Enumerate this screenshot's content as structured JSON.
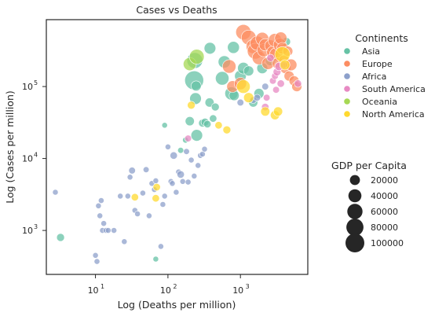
{
  "chart_data": {
    "type": "scatter",
    "title": "Cases vs Deaths",
    "xlabel": "Log (Deaths per million)",
    "ylabel": "Log (Cases per million)",
    "xscale": "log",
    "yscale": "log",
    "xlim": [
      2.1,
      8500
    ],
    "ylim": [
      245,
      850000
    ],
    "xticks": [
      {
        "value": 10,
        "base": "10",
        "exp": "1"
      },
      {
        "value": 100,
        "base": "10",
        "exp": "2"
      },
      {
        "value": 1000,
        "base": "10",
        "exp": "3"
      }
    ],
    "yticks": [
      {
        "value": 1000,
        "base": "10",
        "exp": "3"
      },
      {
        "value": 10000,
        "base": "10",
        "exp": "4"
      },
      {
        "value": 100000,
        "base": "10",
        "exp": "5"
      }
    ],
    "grid": false,
    "hue_legend": {
      "title": "Continents",
      "entries": [
        {
          "name": "Asia",
          "color": "#66c2a5"
        },
        {
          "name": "Europe",
          "color": "#fc8d62"
        },
        {
          "name": "Africa",
          "color": "#8da0cb"
        },
        {
          "name": "South America",
          "color": "#e78ac3"
        },
        {
          "name": "Oceania",
          "color": "#a6d854"
        },
        {
          "name": "North America",
          "color": "#ffd92f"
        }
      ]
    },
    "size_legend": {
      "title": "GDP per Capita",
      "entries": [
        {
          "label": "20000",
          "value": 20000
        },
        {
          "label": "40000",
          "value": 40000
        },
        {
          "label": "60000",
          "value": 60000
        },
        {
          "label": "80000",
          "value": 80000
        },
        {
          "label": "100000",
          "value": 100000
        }
      ]
    },
    "series": [
      {
        "name": "Asia",
        "color": "#66c2a5",
        "points": [
          [
            3.3,
            800,
            10000
          ],
          [
            68,
            400,
            3000
          ],
          [
            90,
            29000,
            3000
          ],
          [
            150,
            13000,
            4000
          ],
          [
            175,
            18000,
            4000
          ],
          [
            200,
            33000,
            15000
          ],
          [
            230,
            122000,
            100000
          ],
          [
            235,
            230000,
            65000
          ],
          [
            240,
            68000,
            30000
          ],
          [
            245,
            102000,
            20000
          ],
          [
            250,
            21000,
            30000
          ],
          [
            300,
            31000,
            10000
          ],
          [
            325,
            32000,
            10000
          ],
          [
            350,
            30000,
            8000
          ],
          [
            375,
            60000,
            15000
          ],
          [
            380,
            340000,
            30000
          ],
          [
            420,
            36000,
            8000
          ],
          [
            450,
            52000,
            10000
          ],
          [
            560,
            130000,
            45000
          ],
          [
            600,
            220000,
            35000
          ],
          [
            750,
            80000,
            40000
          ],
          [
            800,
            350000,
            32000
          ],
          [
            820,
            75000,
            20000
          ],
          [
            1000,
            140000,
            30000
          ],
          [
            1100,
            180000,
            30000
          ],
          [
            1300,
            165000,
            20000
          ],
          [
            1500,
            60000,
            15000
          ],
          [
            1800,
            80000,
            20000
          ],
          [
            2000,
            180000,
            25000
          ],
          [
            2600,
            230000,
            20000
          ],
          [
            4300,
            420000,
            12000
          ]
        ]
      },
      {
        "name": "Europe",
        "color": "#fc8d62",
        "points": [
          [
            700,
            190000,
            45000
          ],
          [
            780,
            100000,
            30000
          ],
          [
            1000,
            110000,
            35000
          ],
          [
            1100,
            570000,
            60000
          ],
          [
            1300,
            480000,
            55000
          ],
          [
            1500,
            360000,
            50000
          ],
          [
            1600,
            310000,
            65000
          ],
          [
            1700,
            400000,
            50000
          ],
          [
            1800,
            250000,
            45000
          ],
          [
            2000,
            460000,
            40000
          ],
          [
            2100,
            320000,
            40000
          ],
          [
            2200,
            380000,
            35000
          ],
          [
            2400,
            210000,
            35000
          ],
          [
            2600,
            370000,
            30000
          ],
          [
            2800,
            300000,
            35000
          ],
          [
            3000,
            440000,
            45000
          ],
          [
            3100,
            280000,
            40000
          ],
          [
            3300,
            210000,
            30000
          ],
          [
            3500,
            380000,
            40000
          ],
          [
            3600,
            470000,
            35000
          ],
          [
            3800,
            340000,
            30000
          ],
          [
            4000,
            230000,
            25000
          ],
          [
            4200,
            180000,
            25000
          ],
          [
            4500,
            310000,
            20000
          ],
          [
            4700,
            140000,
            20000
          ],
          [
            5000,
            200000,
            30000
          ],
          [
            5500,
            120000,
            20000
          ],
          [
            6000,
            100000,
            20000
          ]
        ]
      },
      {
        "name": "Africa",
        "color": "#8da0cb",
        "points": [
          [
            2.8,
            3400,
            3000
          ],
          [
            10,
            450,
            3000
          ],
          [
            10.5,
            370,
            3000
          ],
          [
            11,
            2200,
            3000
          ],
          [
            11.5,
            1600,
            3000
          ],
          [
            12,
            2600,
            3000
          ],
          [
            12.5,
            1000,
            3000
          ],
          [
            13,
            1250,
            3000
          ],
          [
            14,
            1000,
            3000
          ],
          [
            15,
            1000,
            3000
          ],
          [
            18,
            1000,
            3000
          ],
          [
            22,
            3000,
            3000
          ],
          [
            25,
            700,
            3000
          ],
          [
            28,
            3000,
            3000
          ],
          [
            30,
            5500,
            3000
          ],
          [
            32,
            6800,
            6000
          ],
          [
            35,
            1900,
            3000
          ],
          [
            38,
            1700,
            3000
          ],
          [
            45,
            3300,
            3000
          ],
          [
            50,
            7000,
            4000
          ],
          [
            55,
            1600,
            3000
          ],
          [
            60,
            4500,
            3000
          ],
          [
            65,
            3700,
            3000
          ],
          [
            68,
            4900,
            3000
          ],
          [
            80,
            600,
            3000
          ],
          [
            85,
            2300,
            3000
          ],
          [
            90,
            3000,
            3000
          ],
          [
            100,
            14500,
            3000
          ],
          [
            110,
            4800,
            3000
          ],
          [
            115,
            4500,
            3000
          ],
          [
            120,
            11000,
            8000
          ],
          [
            130,
            3400,
            3000
          ],
          [
            140,
            6500,
            3000
          ],
          [
            150,
            6000,
            8000
          ],
          [
            160,
            4800,
            3000
          ],
          [
            180,
            12500,
            4000
          ],
          [
            190,
            4700,
            3000
          ],
          [
            210,
            9500,
            3000
          ],
          [
            230,
            5700,
            3000
          ],
          [
            260,
            8000,
            3000
          ],
          [
            280,
            11000,
            3000
          ],
          [
            300,
            11500,
            3000
          ],
          [
            320,
            13500,
            3000
          ],
          [
            1000,
            60000,
            6000
          ],
          [
            1500,
            65000,
            6000
          ],
          [
            1700,
            70000,
            6000
          ],
          [
            2200,
            100000,
            6000
          ]
        ]
      },
      {
        "name": "South America",
        "color": "#e78ac3",
        "points": [
          [
            190,
            19000,
            6000
          ],
          [
            2200,
            52000,
            8000
          ],
          [
            2300,
            70000,
            6000
          ],
          [
            2600,
            250000,
            8000
          ],
          [
            2800,
            120000,
            6000
          ],
          [
            3000,
            140000,
            6000
          ],
          [
            3100,
            90000,
            6000
          ],
          [
            3200,
            160000,
            10000
          ],
          [
            3400,
            190000,
            12000
          ],
          [
            3600,
            110000,
            8000
          ],
          [
            4000,
            200000,
            8000
          ],
          [
            6200,
            110000,
            8000
          ]
        ]
      },
      {
        "name": "Oceania",
        "color": "#a6d854",
        "points": [
          [
            200,
            205000,
            40000
          ],
          [
            250,
            260000,
            55000
          ]
        ]
      },
      {
        "name": "North America",
        "color": "#ffd92f",
        "points": [
          [
            35,
            2900,
            8000
          ],
          [
            68,
            2800,
            8000
          ],
          [
            70,
            4000,
            8000
          ],
          [
            210,
            55000,
            10000
          ],
          [
            500,
            29000,
            8000
          ],
          [
            650,
            25000,
            10000
          ],
          [
            1100,
            100000,
            45000
          ],
          [
            1300,
            70000,
            20000
          ],
          [
            2200,
            45000,
            15000
          ],
          [
            3000,
            40000,
            15000
          ],
          [
            3300,
            45000,
            15000
          ],
          [
            3800,
            280000,
            60000
          ],
          [
            4100,
            200000,
            20000
          ]
        ]
      }
    ]
  }
}
